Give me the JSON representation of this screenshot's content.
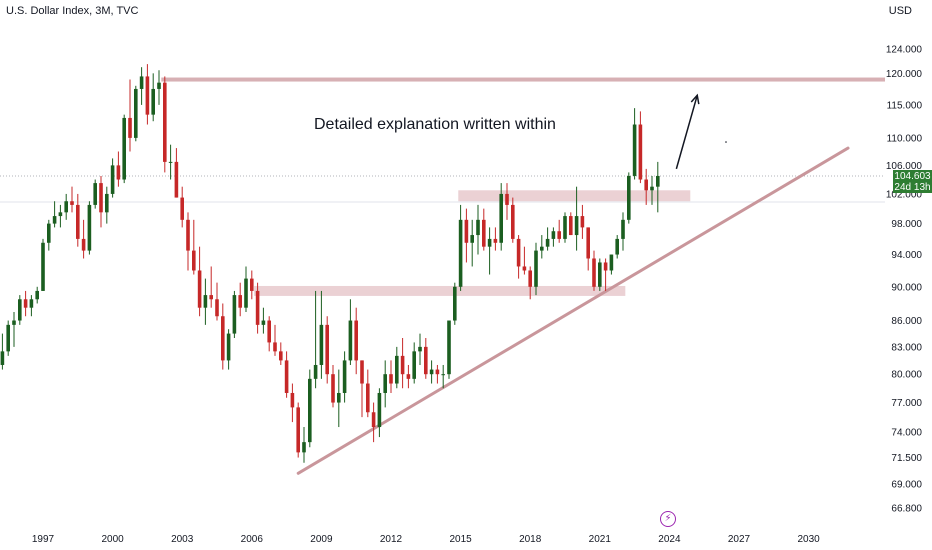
{
  "header": {
    "title": "U.S. Dollar Index, 3M, TVC",
    "currency": "USD"
  },
  "annotation": "Detailed explanation written within",
  "last_price": {
    "value": "104.603",
    "countdown": "24d 13h"
  },
  "colors": {
    "bull": "#1b5e20",
    "bear": "#c62828",
    "zone": "#e8c9cc",
    "line": "#c9969b",
    "price_tag": "#2e7d32"
  },
  "icons": [
    "lightning-icon"
  ],
  "chart_data": {
    "type": "candlestick",
    "title": "U.S. Dollar Index, 3M, TVC",
    "y_ticks": [
      "124.000",
      "120.000",
      "115.000",
      "110.000",
      "106.000",
      "102.000",
      "98.000",
      "94.000",
      "90.000",
      "86.000",
      "83.000",
      "80.000",
      "77.000",
      "74.000",
      "71.500",
      "69.000",
      "66.800"
    ],
    "x_ticks": [
      "1997",
      "2000",
      "2003",
      "2006",
      "2009",
      "2012",
      "2015",
      "2018",
      "2021",
      "2024",
      "2027",
      "2030"
    ],
    "ylim": [
      66.8,
      124
    ],
    "y_scale": "log",
    "grid": false,
    "horizontal_levels": [
      119.0
    ],
    "zones": [
      {
        "x0": 2006.1,
        "x1": 2022.1,
        "y0": 88.9,
        "y1": 90.1
      },
      {
        "x0": 2014.9,
        "x1": 2024.9,
        "y0": 101.0,
        "y1": 102.5
      }
    ],
    "trendline": {
      "x0": 2008.0,
      "y0": 70.0,
      "x1": 2031.7,
      "y1": 108.5
    },
    "arrow": {
      "x0": 2024.3,
      "y0": 105.5,
      "x1": 2025.2,
      "y1": 116.5
    },
    "last_close": 104.603,
    "candles": [
      [
        1994.75,
        88.5,
        90.5,
        82.5,
        83.5
      ],
      [
        1995.0,
        83.5,
        85.0,
        80.0,
        81.0
      ],
      [
        1995.25,
        81.0,
        84.5,
        80.5,
        82.5
      ],
      [
        1995.5,
        82.5,
        86.0,
        82.0,
        85.5
      ],
      [
        1995.75,
        85.5,
        87.0,
        83.0,
        86.0
      ],
      [
        1996.0,
        86.0,
        89.0,
        85.5,
        88.5
      ],
      [
        1996.25,
        88.5,
        89.5,
        86.5,
        87.5
      ],
      [
        1996.5,
        87.5,
        89.0,
        86.5,
        88.5
      ],
      [
        1996.75,
        88.5,
        90.0,
        88.0,
        89.5
      ],
      [
        1997.0,
        89.5,
        96.0,
        89.5,
        95.5
      ],
      [
        1997.25,
        95.5,
        98.5,
        94.5,
        98.0
      ],
      [
        1997.5,
        98.0,
        101.0,
        97.5,
        99.0
      ],
      [
        1997.75,
        99.0,
        100.5,
        97.5,
        99.5
      ],
      [
        1998.0,
        99.5,
        102.0,
        98.5,
        101.0
      ],
      [
        1998.25,
        101.0,
        103.0,
        99.5,
        100.5
      ],
      [
        1998.5,
        100.5,
        102.0,
        95.0,
        96.0
      ],
      [
        1998.75,
        96.0,
        98.5,
        93.5,
        94.5
      ],
      [
        1999.0,
        94.5,
        101.0,
        94.0,
        100.5
      ],
      [
        1999.25,
        100.5,
        104.0,
        100.0,
        103.5
      ],
      [
        1999.5,
        103.5,
        104.5,
        97.5,
        99.5
      ],
      [
        1999.75,
        99.5,
        103.0,
        98.0,
        102.0
      ],
      [
        2000.0,
        102.0,
        107.0,
        101.5,
        106.0
      ],
      [
        2000.25,
        106.0,
        108.0,
        103.0,
        104.0
      ],
      [
        2000.5,
        104.0,
        113.5,
        103.5,
        113.0
      ],
      [
        2000.75,
        113.0,
        119.0,
        108.0,
        110.0
      ],
      [
        2001.0,
        110.0,
        118.0,
        109.5,
        117.5
      ],
      [
        2001.25,
        117.5,
        121.0,
        115.0,
        119.5
      ],
      [
        2001.5,
        119.5,
        121.5,
        112.0,
        113.5
      ],
      [
        2001.75,
        113.5,
        120.0,
        112.5,
        117.5
      ],
      [
        2002.0,
        117.5,
        120.5,
        115.0,
        118.5
      ],
      [
        2002.25,
        118.5,
        119.5,
        105.0,
        106.5
      ],
      [
        2002.5,
        106.5,
        109.0,
        104.0,
        106.5
      ],
      [
        2002.75,
        106.5,
        108.5,
        101.5,
        101.5
      ],
      [
        2003.0,
        101.5,
        103.0,
        97.5,
        98.5
      ],
      [
        2003.25,
        98.5,
        99.5,
        92.0,
        94.5
      ],
      [
        2003.5,
        94.5,
        98.5,
        91.5,
        92.0
      ],
      [
        2003.75,
        92.0,
        95.0,
        86.5,
        87.5
      ],
      [
        2004.0,
        87.5,
        91.0,
        85.5,
        89.0
      ],
      [
        2004.25,
        89.0,
        92.5,
        87.5,
        88.5
      ],
      [
        2004.5,
        88.5,
        90.5,
        86.0,
        86.5
      ],
      [
        2004.75,
        86.5,
        88.0,
        80.5,
        81.5
      ],
      [
        2005.0,
        81.5,
        85.0,
        80.5,
        84.5
      ],
      [
        2005.25,
        84.5,
        89.5,
        84.0,
        89.0
      ],
      [
        2005.5,
        89.0,
        90.5,
        86.5,
        87.5
      ],
      [
        2005.75,
        87.5,
        92.5,
        87.0,
        91.0
      ],
      [
        2006.0,
        91.0,
        92.0,
        88.5,
        89.5
      ],
      [
        2006.25,
        89.5,
        90.5,
        84.5,
        85.5
      ],
      [
        2006.5,
        85.5,
        87.5,
        84.5,
        86.0
      ],
      [
        2006.75,
        86.0,
        86.5,
        82.5,
        83.5
      ],
      [
        2007.0,
        83.5,
        85.5,
        82.0,
        82.5
      ],
      [
        2007.25,
        82.5,
        83.5,
        81.0,
        81.5
      ],
      [
        2007.5,
        81.5,
        82.5,
        77.5,
        78.0
      ],
      [
        2007.75,
        78.0,
        79.0,
        75.0,
        76.5
      ],
      [
        2008.0,
        76.5,
        77.0,
        71.5,
        72.0
      ],
      [
        2008.25,
        72.0,
        74.5,
        71.0,
        73.0
      ],
      [
        2008.5,
        73.0,
        80.5,
        72.5,
        79.5
      ],
      [
        2008.75,
        79.5,
        89.5,
        78.5,
        81.0
      ],
      [
        2009.0,
        81.0,
        89.5,
        79.5,
        85.5
      ],
      [
        2009.25,
        85.5,
        86.5,
        79.0,
        80.0
      ],
      [
        2009.5,
        80.0,
        81.0,
        76.5,
        77.0
      ],
      [
        2009.75,
        77.0,
        80.5,
        74.5,
        78.0
      ],
      [
        2010.0,
        78.0,
        82.5,
        77.0,
        81.5
      ],
      [
        2010.25,
        81.5,
        88.5,
        81.0,
        86.0
      ],
      [
        2010.5,
        86.0,
        87.5,
        80.0,
        81.5
      ],
      [
        2010.75,
        81.5,
        81.5,
        75.5,
        79.0
      ],
      [
        2011.0,
        79.0,
        80.5,
        75.5,
        76.0
      ],
      [
        2011.25,
        76.0,
        77.0,
        73.0,
        74.5
      ],
      [
        2011.5,
        74.5,
        78.5,
        73.5,
        78.0
      ],
      [
        2011.75,
        78.0,
        81.5,
        76.5,
        80.0
      ],
      [
        2012.0,
        80.0,
        81.5,
        78.0,
        79.0
      ],
      [
        2012.25,
        79.0,
        83.0,
        78.5,
        82.0
      ],
      [
        2012.5,
        82.0,
        84.0,
        78.5,
        80.0
      ],
      [
        2012.75,
        80.0,
        81.0,
        78.5,
        79.5
      ],
      [
        2013.0,
        79.5,
        83.5,
        79.0,
        82.5
      ],
      [
        2013.25,
        82.5,
        84.5,
        81.0,
        83.0
      ],
      [
        2013.5,
        83.0,
        84.0,
        79.5,
        80.0
      ],
      [
        2013.75,
        80.0,
        81.5,
        79.0,
        80.5
      ],
      [
        2014.0,
        80.5,
        81.0,
        79.0,
        80.0
      ],
      [
        2014.25,
        80.0,
        81.0,
        78.5,
        80.0
      ],
      [
        2014.5,
        80.0,
        86.0,
        79.5,
        86.0
      ],
      [
        2014.75,
        86.0,
        90.5,
        85.5,
        90.0
      ],
      [
        2015.0,
        90.0,
        100.5,
        89.5,
        98.5
      ],
      [
        2015.25,
        98.5,
        100.0,
        93.0,
        95.5
      ],
      [
        2015.5,
        95.5,
        98.5,
        92.5,
        96.5
      ],
      [
        2015.75,
        96.5,
        100.5,
        94.0,
        98.5
      ],
      [
        2016.0,
        98.5,
        100.0,
        94.5,
        95.0
      ],
      [
        2016.25,
        95.0,
        97.5,
        91.5,
        96.0
      ],
      [
        2016.5,
        96.0,
        97.5,
        94.5,
        95.5
      ],
      [
        2016.75,
        95.5,
        103.5,
        94.5,
        102.0
      ],
      [
        2017.0,
        102.0,
        103.5,
        98.5,
        100.5
      ],
      [
        2017.25,
        100.5,
        101.5,
        95.5,
        96.0
      ],
      [
        2017.5,
        96.0,
        96.5,
        91.0,
        92.5
      ],
      [
        2017.75,
        92.5,
        95.0,
        91.5,
        92.0
      ],
      [
        2018.0,
        92.0,
        92.5,
        88.5,
        90.0
      ],
      [
        2018.25,
        90.0,
        95.5,
        89.0,
        94.5
      ],
      [
        2018.5,
        94.5,
        96.5,
        93.5,
        95.0
      ],
      [
        2018.75,
        95.0,
        97.5,
        94.5,
        96.0
      ],
      [
        2019.0,
        96.0,
        97.5,
        95.0,
        97.0
      ],
      [
        2019.25,
        97.0,
        98.5,
        95.5,
        96.0
      ],
      [
        2019.5,
        96.0,
        99.5,
        95.5,
        99.0
      ],
      [
        2019.75,
        99.0,
        99.5,
        96.5,
        96.5
      ],
      [
        2020.0,
        96.5,
        103.0,
        94.5,
        99.0
      ],
      [
        2020.25,
        99.0,
        100.5,
        96.0,
        97.5
      ],
      [
        2020.5,
        97.5,
        97.5,
        92.0,
        93.5
      ],
      [
        2020.75,
        93.5,
        94.5,
        89.5,
        90.0
      ],
      [
        2021.0,
        90.0,
        93.5,
        89.5,
        93.0
      ],
      [
        2021.25,
        93.0,
        93.5,
        89.5,
        92.0
      ],
      [
        2021.5,
        92.0,
        94.0,
        91.5,
        94.0
      ],
      [
        2021.75,
        94.0,
        96.5,
        93.5,
        96.0
      ],
      [
        2022.0,
        96.0,
        99.5,
        94.5,
        98.5
      ],
      [
        2022.25,
        98.5,
        105.0,
        98.0,
        104.5
      ],
      [
        2022.5,
        104.5,
        114.5,
        104.0,
        112.0
      ],
      [
        2022.75,
        112.0,
        114.0,
        103.5,
        104.0
      ],
      [
        2023.0,
        104.0,
        105.5,
        100.5,
        102.5
      ],
      [
        2023.25,
        102.5,
        104.5,
        100.5,
        103.0
      ],
      [
        2023.5,
        103.0,
        106.5,
        99.5,
        104.5
      ]
    ]
  }
}
